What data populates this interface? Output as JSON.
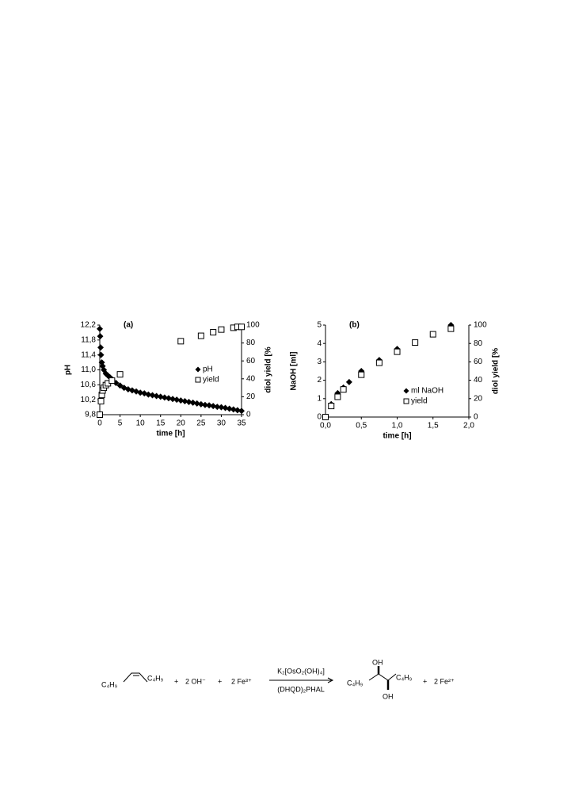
{
  "chart_data": [
    {
      "type": "scatter",
      "title": "(a)",
      "xlabel": "time [h]",
      "ylabel": "pH",
      "y2label": "diol yield [%",
      "xlim": [
        0,
        35
      ],
      "xticks": [
        0,
        5,
        10,
        15,
        20,
        25,
        30,
        35
      ],
      "ylim": [
        9.8,
        12.2
      ],
      "yticks": [
        {
          "value": 9.8,
          "label": "9,8"
        },
        {
          "value": 10.2,
          "label": "10,2"
        },
        {
          "value": 10.6,
          "label": "10,6"
        },
        {
          "value": 11.0,
          "label": "11,0"
        },
        {
          "value": 11.4,
          "label": "11,4"
        },
        {
          "value": 11.8,
          "label": "11,8"
        },
        {
          "value": 12.2,
          "label": "12,2"
        }
      ],
      "y2lim": [
        0,
        100
      ],
      "y2ticks": [
        0,
        20,
        40,
        60,
        80,
        100
      ],
      "series": [
        {
          "name": "pH",
          "color": "#000000",
          "marker": "diamond",
          "x": [
            0,
            0.1,
            0.2,
            0.3,
            0.5,
            0.7,
            1,
            1.5,
            2,
            2.5,
            3,
            4,
            5,
            6,
            7,
            8,
            9,
            10,
            11,
            12,
            13,
            14,
            15,
            16,
            17,
            18,
            19,
            20,
            21,
            22,
            23,
            24,
            25,
            26,
            27,
            28,
            29,
            30,
            31,
            32,
            33,
            34,
            35
          ],
          "values": [
            12.1,
            11.9,
            11.6,
            11.4,
            11.2,
            11.1,
            11.0,
            10.9,
            10.85,
            10.8,
            10.75,
            10.65,
            10.58,
            10.52,
            10.48,
            10.45,
            10.42,
            10.39,
            10.37,
            10.34,
            10.32,
            10.3,
            10.28,
            10.26,
            10.24,
            10.22,
            10.2,
            10.18,
            10.16,
            10.14,
            10.12,
            10.1,
            10.08,
            10.06,
            10.05,
            10.03,
            10.01,
            10.0,
            9.98,
            9.96,
            9.94,
            9.92,
            9.9
          ]
        },
        {
          "name": "yield",
          "color": "#000000",
          "marker": "square",
          "axis": "y2",
          "x": [
            0,
            0.3,
            0.5,
            0.7,
            1,
            1.5,
            2,
            3,
            5,
            20,
            25,
            28,
            30,
            33,
            34,
            35
          ],
          "values": [
            0,
            15,
            22,
            27,
            30,
            33,
            35,
            38,
            45,
            82,
            88,
            92,
            95,
            97,
            98,
            98
          ]
        }
      ]
    },
    {
      "type": "scatter",
      "title": "(b)",
      "xlabel": "time [h]",
      "ylabel": "NaOH [ml]",
      "y2label": "diol yield [%",
      "xlim": [
        0,
        2
      ],
      "xticks": [
        {
          "value": 0,
          "label": "0,0"
        },
        {
          "value": 0.5,
          "label": "0,5"
        },
        {
          "value": 1.0,
          "label": "1,0"
        },
        {
          "value": 1.5,
          "label": "1,5"
        },
        {
          "value": 2.0,
          "label": "2,0"
        }
      ],
      "ylim": [
        0,
        5
      ],
      "yticks": [
        0,
        1,
        2,
        3,
        4,
        5
      ],
      "y2lim": [
        0,
        100
      ],
      "y2ticks": [
        0,
        20,
        40,
        60,
        80,
        100
      ],
      "series": [
        {
          "name": "ml NaOH",
          "color": "#000000",
          "marker": "diamond",
          "x": [
            0,
            0.08,
            0.17,
            0.25,
            0.33,
            0.5,
            0.75,
            1.0,
            1.75
          ],
          "values": [
            0,
            0.7,
            1.3,
            1.6,
            1.9,
            2.5,
            3.1,
            3.7,
            5.0
          ]
        },
        {
          "name": "yield",
          "color": "#000000",
          "marker": "square",
          "axis": "y2",
          "x": [
            0,
            0.08,
            0.17,
            0.25,
            0.5,
            0.75,
            1.0,
            1.25,
            1.5,
            1.75
          ],
          "values": [
            0,
            12,
            22,
            30,
            46,
            59,
            71,
            81,
            90,
            96
          ]
        }
      ]
    }
  ],
  "equation": {
    "alkyl_left": "C₄H₉",
    "alkyl_right": "C₄H₉",
    "plus": [
      "+",
      "+",
      "+"
    ],
    "hydroxide": "2 OH⁻",
    "iron_in": "2 Fe³⁺",
    "catalyst": "K₂[OsO₂(OH)₄]",
    "ligand": "(DHQD)₂PHAL",
    "prod_oh_top": "OH",
    "prod_oh_bottom": "OH",
    "prod_alkyl_left": "C₄H₉",
    "prod_alkyl_right": "C₄H₉",
    "iron_out": "2 Fe²⁺"
  }
}
